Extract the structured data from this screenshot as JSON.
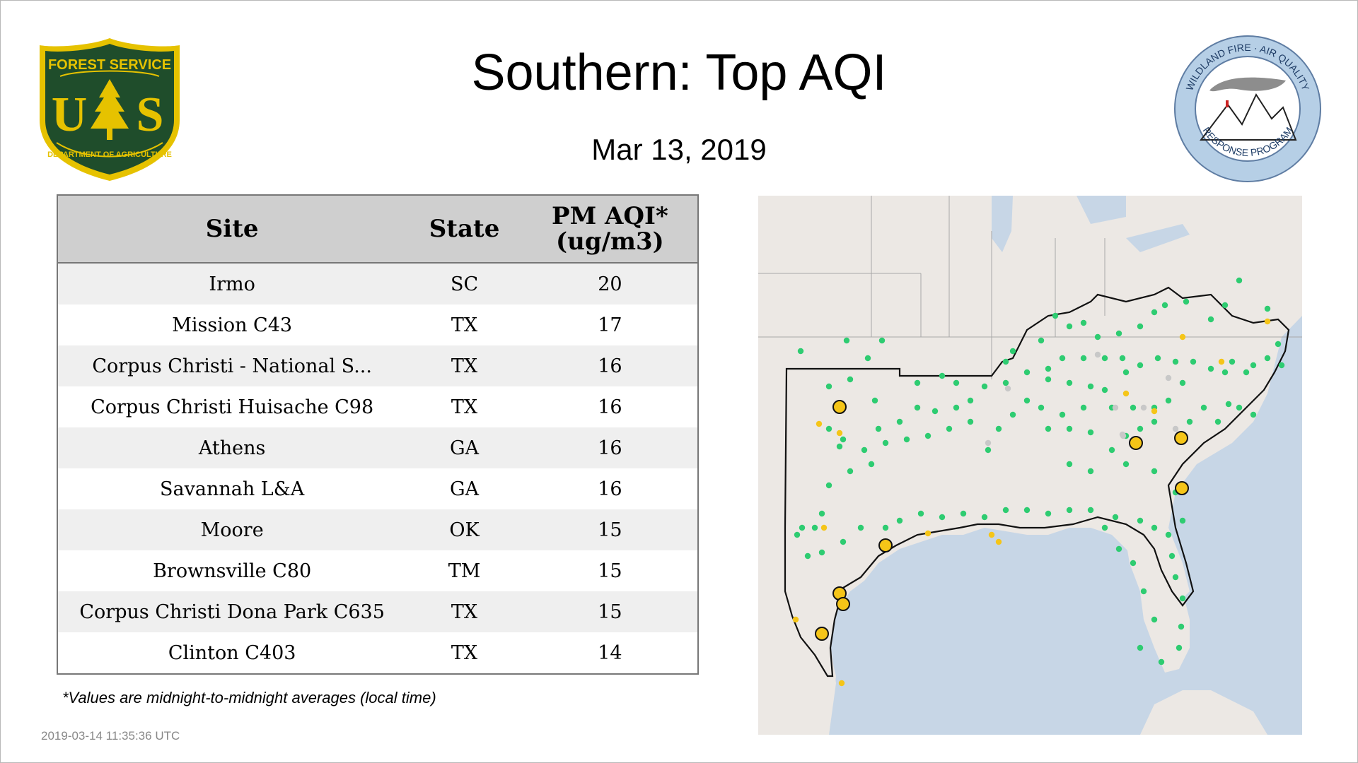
{
  "title": "Southern: Top AQI",
  "date": "Mar 13, 2019",
  "logos": {
    "forest_service": {
      "top": "FOREST SERVICE",
      "center": "US",
      "bottom": "DEPARTMENT OF AGRICULTURE",
      "color": "#1f4d2b",
      "accent": "#e6c200"
    },
    "wildland_fire": {
      "top": "WILDLAND FIRE · AIR QUALITY",
      "bottom": "RESPONSE PROGRAM",
      "ring_color": "#b6cfe6"
    }
  },
  "table": {
    "headers": [
      "Site",
      "State",
      "PM AQI* (ug/m3)"
    ],
    "header_line1": "PM AQI*",
    "header_line2": "(ug/m3)",
    "rows": [
      {
        "site": "Irmo",
        "state": "SC",
        "aqi": "20"
      },
      {
        "site": "Mission C43",
        "state": "TX",
        "aqi": "17"
      },
      {
        "site": "Corpus Christi - National S...",
        "state": "TX",
        "aqi": "16"
      },
      {
        "site": "Corpus Christi Huisache C98",
        "state": "TX",
        "aqi": "16"
      },
      {
        "site": "Athens",
        "state": "GA",
        "aqi": "16"
      },
      {
        "site": "Savannah L&A",
        "state": "GA",
        "aqi": "16"
      },
      {
        "site": "Moore",
        "state": "OK",
        "aqi": "15"
      },
      {
        "site": "Brownsville C80",
        "state": "TM",
        "aqi": "15"
      },
      {
        "site": "Corpus Christi Dona Park C635",
        "state": "TX",
        "aqi": "15"
      },
      {
        "site": "Clinton C403",
        "state": "TX",
        "aqi": "14"
      }
    ]
  },
  "footnote": "*Values are midnight-to-midnight averages (local time)",
  "timestamp": "2019-03-14 11:35:36 UTC",
  "map": {
    "colors": {
      "land": "#ece8e4",
      "water": "#c7d6e6",
      "good": "#2ecc71",
      "moderate": "#f5c518",
      "nodata": "#c8c8c8",
      "border": "#111111"
    }
  }
}
